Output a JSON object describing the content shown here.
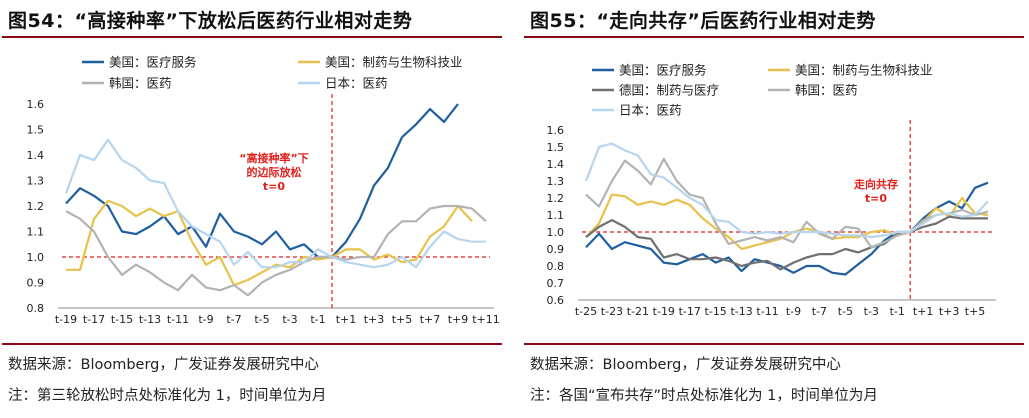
{
  "colors": {
    "us_healthcare": "#1f5fa0",
    "us_pharma": "#e8c24a",
    "kr_pharma": "#b3b3b3",
    "jp_pharma": "#b6d5ef",
    "de_pharma": "#707070",
    "marker": "#e0211d",
    "rule": "#8b0a16"
  },
  "left": {
    "title": "图54：“高接种率”下放松后医药行业相对走势",
    "source": "数据来源：Bloomberg，广发证券发展研究中心",
    "note": "注：第三轮放松时点处标准化为 1，时间单位为月",
    "annotation": [
      "“高接种率”下",
      "的边际放松",
      "t=0"
    ],
    "chart_data": {
      "type": "line",
      "x": [
        "t-19",
        "t-18",
        "t-17",
        "t-16",
        "t-15",
        "t-14",
        "t-13",
        "t-12",
        "t-11",
        "t-10",
        "t-9",
        "t-8",
        "t-7",
        "t-6",
        "t-5",
        "t-4",
        "t-3",
        "t-2",
        "t-1",
        "t0",
        "t+1",
        "t+2",
        "t+3",
        "t+4",
        "t+5",
        "t+6",
        "t+7",
        "t+8",
        "t+9",
        "t+10",
        "t+11"
      ],
      "x_tick_labels": [
        "t-19",
        "t-17",
        "t-15",
        "t-13",
        "t-11",
        "t-9",
        "t-7",
        "t-5",
        "t-3",
        "t-1",
        "t+1",
        "t+3",
        "t+5",
        "t+7",
        "t+9",
        "t+11"
      ],
      "ylim": [
        0.8,
        1.6
      ],
      "yticks": [
        "0.8",
        "0.9",
        "1.0",
        "1.1",
        "1.2",
        "1.3",
        "1.4",
        "1.5",
        "1.6"
      ],
      "marker_x": "t0",
      "baseline_y": 1.0,
      "legend": [
        "美国：医疗服务",
        "美国：制药与生物科技业",
        "韩国：医药",
        "日本：医药"
      ],
      "series": [
        {
          "name": "美国：医疗服务",
          "color_key": "us_healthcare",
          "values": [
            1.21,
            1.27,
            1.24,
            1.2,
            1.1,
            1.09,
            1.12,
            1.16,
            1.09,
            1.12,
            1.04,
            1.17,
            1.1,
            1.08,
            1.05,
            1.1,
            1.03,
            1.05,
            1.0,
            1.0,
            1.06,
            1.15,
            1.28,
            1.35,
            1.47,
            1.52,
            1.58,
            1.53,
            1.6,
            null,
            null
          ]
        },
        {
          "name": "美国：制药与生物科技业",
          "color_key": "us_pharma",
          "values": [
            0.95,
            0.95,
            1.15,
            1.22,
            1.2,
            1.16,
            1.19,
            1.16,
            1.18,
            1.06,
            0.97,
            1.0,
            0.89,
            0.91,
            0.94,
            0.97,
            0.96,
            1.0,
            0.99,
            1.0,
            1.03,
            1.03,
            0.99,
            1.01,
            0.98,
            0.99,
            1.08,
            1.12,
            1.2,
            1.14,
            null
          ]
        },
        {
          "name": "韩国：医药",
          "color_key": "kr_pharma",
          "values": [
            1.18,
            1.15,
            1.1,
            1.0,
            0.93,
            0.97,
            0.94,
            0.9,
            0.87,
            0.93,
            0.88,
            0.87,
            0.89,
            0.85,
            0.9,
            0.93,
            0.95,
            0.98,
            1.0,
            1.0,
            0.99,
            1.0,
            1.0,
            1.09,
            1.14,
            1.14,
            1.19,
            1.2,
            1.2,
            1.19,
            1.14
          ]
        },
        {
          "name": "日本：医药",
          "color_key": "jp_pharma",
          "values": [
            1.25,
            1.4,
            1.38,
            1.46,
            1.38,
            1.35,
            1.3,
            1.29,
            1.18,
            1.12,
            1.09,
            1.06,
            0.97,
            1.02,
            0.96,
            0.96,
            0.98,
            0.98,
            1.03,
            1.0,
            0.98,
            0.97,
            0.96,
            0.97,
            1.0,
            0.96,
            1.04,
            1.1,
            1.07,
            1.06,
            1.06
          ]
        }
      ]
    }
  },
  "right": {
    "title": "图55：“走向共存”后医药行业相对走势",
    "source": "数据来源：Bloomberg，广发证券发展研究中心",
    "note": "注：各国“宣布共存”时点处标准化为 1，时间单位为月",
    "annotation": [
      "走向共存",
      "t=0"
    ],
    "chart_data": {
      "type": "line",
      "x": [
        "t-25",
        "t-24",
        "t-23",
        "t-22",
        "t-21",
        "t-20",
        "t-19",
        "t-18",
        "t-17",
        "t-16",
        "t-15",
        "t-14",
        "t-13",
        "t-12",
        "t-11",
        "t-10",
        "t-9",
        "t-8",
        "t-7",
        "t-6",
        "t-5",
        "t-4",
        "t-3",
        "t-2",
        "t-1",
        "t0",
        "t+1",
        "t+2",
        "t+3",
        "t+4",
        "t+5",
        "t+6"
      ],
      "x_tick_labels": [
        "t-25",
        "t-23",
        "t-21",
        "t-19",
        "t-17",
        "t-15",
        "t-13",
        "t-11",
        "t-9",
        "t-7",
        "t-5",
        "t-3",
        "t-1",
        "t+1",
        "t+3",
        "t+5"
      ],
      "ylim": [
        0.6,
        1.6
      ],
      "yticks": [
        "0.6",
        "0.7",
        "0.8",
        "0.9",
        "1.0",
        "1.1",
        "1.2",
        "1.3",
        "1.4",
        "1.5",
        "1.6"
      ],
      "marker_x": "t0",
      "baseline_y": 1.0,
      "legend": [
        "美国：医疗服务",
        "美国：制药与生物科技业",
        "德国：制药与医疗",
        "韩国：医药",
        "日本：医药"
      ],
      "series": [
        {
          "name": "美国：医疗服务",
          "color_key": "us_healthcare",
          "values": [
            0.91,
            0.99,
            0.9,
            0.94,
            0.92,
            0.9,
            0.82,
            0.81,
            0.84,
            0.87,
            0.82,
            0.85,
            0.77,
            0.84,
            0.82,
            0.8,
            0.76,
            0.8,
            0.8,
            0.76,
            0.75,
            0.81,
            0.87,
            0.95,
            1.0,
            1.0,
            1.08,
            1.14,
            1.18,
            1.14,
            1.26,
            1.29
          ]
        },
        {
          "name": "美国：制药与生物科技业",
          "color_key": "us_pharma",
          "values": [
            0.97,
            1.05,
            1.22,
            1.21,
            1.16,
            1.18,
            1.16,
            1.19,
            1.16,
            1.08,
            1.02,
            0.97,
            0.9,
            0.92,
            0.94,
            0.96,
            1.0,
            1.02,
            1.0,
            0.96,
            0.97,
            0.97,
            1.0,
            1.01,
            0.98,
            1.0,
            1.06,
            1.14,
            1.09,
            1.2,
            1.11,
            1.1
          ]
        },
        {
          "name": "德国：制药与医疗",
          "color_key": "de_pharma",
          "values": [
            0.97,
            1.03,
            1.07,
            1.03,
            0.97,
            0.96,
            0.85,
            0.87,
            0.84,
            0.84,
            0.85,
            0.83,
            0.8,
            0.82,
            0.83,
            0.78,
            0.82,
            0.85,
            0.87,
            0.87,
            0.9,
            0.88,
            0.91,
            0.93,
            0.99,
            1.0,
            1.03,
            1.05,
            1.09,
            1.08,
            1.08,
            1.08
          ]
        },
        {
          "name": "韩国：医药",
          "color_key": "kr_pharma",
          "values": [
            1.22,
            1.15,
            1.3,
            1.42,
            1.36,
            1.28,
            1.43,
            1.3,
            1.22,
            1.2,
            1.05,
            0.93,
            0.95,
            0.97,
            0.95,
            0.97,
            0.94,
            1.06,
            0.99,
            0.96,
            1.03,
            1.02,
            0.91,
            0.94,
            0.98,
            1.0,
            1.07,
            1.1,
            1.11,
            1.13,
            1.1,
            1.12
          ]
        },
        {
          "name": "日本：医药",
          "color_key": "jp_pharma",
          "values": [
            1.3,
            1.5,
            1.52,
            1.48,
            1.45,
            1.34,
            1.32,
            1.26,
            1.2,
            1.16,
            1.07,
            1.06,
            1.0,
            0.99,
            1.0,
            0.99,
            1.0,
            1.0,
            1.0,
            0.99,
            0.98,
            0.98,
            0.97,
            0.98,
            1.0,
            1.0,
            1.05,
            1.1,
            1.11,
            1.09,
            1.1,
            1.18
          ]
        }
      ]
    }
  }
}
